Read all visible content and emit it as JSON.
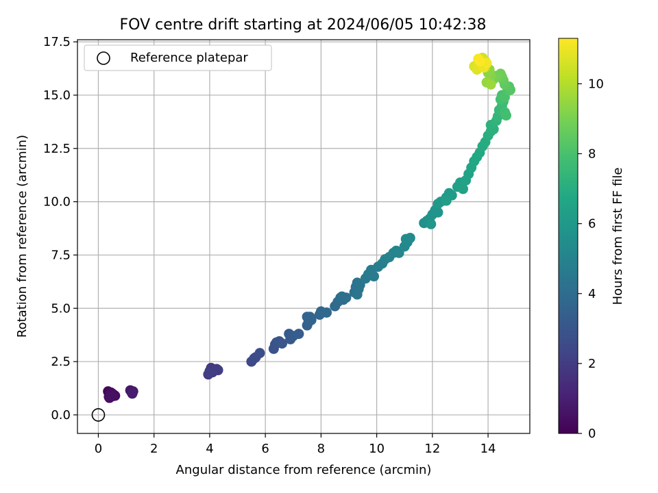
{
  "chart_data": {
    "type": "scatter",
    "title": "FOV centre drift starting at 2024/06/05 10:42:38",
    "xlabel": "Angular distance from reference (arcmin)",
    "ylabel": "Rotation from reference (arcmin)",
    "xlim": [
      -0.75,
      15.5
    ],
    "ylim": [
      -0.87,
      17.6
    ],
    "xticks": [
      "0",
      "2",
      "4",
      "6",
      "8",
      "10",
      "12",
      "14"
    ],
    "yticks": [
      "0.0",
      "2.5",
      "5.0",
      "7.5",
      "10.0",
      "12.5",
      "15.0",
      "17.5"
    ],
    "grid": true,
    "legend": {
      "placement": "top-left",
      "entries": [
        "Reference platepar"
      ]
    },
    "reference_point": {
      "name": "Reference platepar",
      "x": 0.0,
      "y": 0.0
    },
    "colorbar": {
      "label": "Hours from first FF file",
      "colormap": "viridis",
      "range": [
        0,
        11.3
      ],
      "ticks": [
        "0",
        "2",
        "4",
        "6",
        "8",
        "10"
      ]
    },
    "series": [
      {
        "points": [
          [
            0.35,
            1.1,
            0.1
          ],
          [
            0.45,
            0.95,
            0.15
          ],
          [
            0.5,
            1.0,
            0.2
          ],
          [
            0.55,
            0.95,
            0.25
          ],
          [
            0.4,
            0.8,
            0.3
          ],
          [
            0.6,
            0.9,
            0.35
          ],
          [
            0.45,
            1.05,
            0.4
          ],
          [
            0.38,
            0.85,
            0.45
          ],
          [
            0.52,
            0.88,
            0.5
          ],
          [
            1.15,
            1.15,
            0.7
          ],
          [
            1.2,
            1.05,
            0.75
          ],
          [
            1.25,
            1.1,
            0.8
          ],
          [
            1.22,
            1.0,
            0.85
          ],
          [
            3.95,
            1.9,
            1.8
          ],
          [
            4.0,
            2.05,
            1.85
          ],
          [
            4.05,
            2.2,
            1.9
          ],
          [
            4.1,
            2.0,
            1.95
          ],
          [
            4.25,
            2.15,
            2.0
          ],
          [
            4.3,
            2.1,
            2.05
          ],
          [
            3.98,
            1.95,
            2.1
          ],
          [
            5.5,
            2.5,
            2.5
          ],
          [
            5.6,
            2.65,
            2.55
          ],
          [
            5.65,
            2.7,
            2.6
          ],
          [
            5.8,
            2.9,
            2.65
          ],
          [
            6.3,
            3.1,
            2.85
          ],
          [
            6.35,
            3.3,
            2.9
          ],
          [
            6.4,
            3.4,
            2.95
          ],
          [
            6.5,
            3.45,
            3.0
          ],
          [
            6.6,
            3.35,
            3.05
          ],
          [
            6.9,
            3.55,
            3.15
          ],
          [
            6.85,
            3.8,
            3.2
          ],
          [
            7.0,
            3.7,
            3.25
          ],
          [
            7.2,
            3.8,
            3.3
          ],
          [
            7.5,
            4.2,
            3.45
          ],
          [
            7.55,
            4.35,
            3.5
          ],
          [
            7.6,
            4.6,
            3.55
          ],
          [
            7.65,
            4.45,
            3.6
          ],
          [
            7.5,
            4.6,
            3.62
          ],
          [
            7.95,
            4.7,
            3.7
          ],
          [
            8.0,
            4.85,
            3.75
          ],
          [
            8.2,
            4.8,
            3.8
          ],
          [
            8.5,
            5.1,
            3.9
          ],
          [
            8.6,
            5.3,
            3.95
          ],
          [
            8.7,
            5.5,
            4.0
          ],
          [
            8.8,
            5.4,
            4.05
          ],
          [
            8.9,
            5.5,
            4.1
          ],
          [
            8.75,
            5.55,
            4.12
          ],
          [
            9.2,
            5.75,
            4.2
          ],
          [
            9.25,
            6.0,
            4.25
          ],
          [
            9.3,
            6.2,
            4.3
          ],
          [
            9.35,
            5.9,
            4.35
          ],
          [
            9.4,
            6.1,
            4.4
          ],
          [
            9.3,
            5.65,
            4.45
          ],
          [
            9.6,
            6.4,
            4.55
          ],
          [
            9.7,
            6.6,
            4.6
          ],
          [
            9.8,
            6.8,
            4.65
          ],
          [
            9.9,
            6.5,
            4.7
          ],
          [
            10.05,
            6.95,
            4.8
          ],
          [
            10.2,
            7.1,
            4.85
          ],
          [
            10.3,
            7.3,
            4.9
          ],
          [
            10.45,
            7.4,
            4.95
          ],
          [
            10.6,
            7.6,
            5.05
          ],
          [
            10.7,
            7.7,
            5.1
          ],
          [
            10.8,
            7.6,
            5.15
          ],
          [
            11.0,
            7.9,
            5.25
          ],
          [
            11.1,
            8.1,
            5.3
          ],
          [
            11.2,
            8.3,
            5.35
          ],
          [
            11.05,
            8.25,
            5.4
          ],
          [
            11.7,
            9.0,
            5.6
          ],
          [
            11.8,
            9.1,
            5.65
          ],
          [
            11.9,
            9.2,
            5.7
          ],
          [
            12.0,
            9.4,
            5.75
          ],
          [
            12.1,
            9.6,
            5.8
          ],
          [
            12.2,
            9.5,
            5.85
          ],
          [
            11.95,
            8.95,
            5.9
          ],
          [
            12.2,
            9.9,
            6.0
          ],
          [
            12.3,
            10.0,
            6.05
          ],
          [
            12.5,
            10.2,
            6.1
          ],
          [
            12.6,
            10.4,
            6.15
          ],
          [
            12.7,
            10.3,
            6.2
          ],
          [
            12.5,
            10.05,
            6.25
          ],
          [
            12.9,
            10.7,
            6.35
          ],
          [
            13.0,
            10.9,
            6.4
          ],
          [
            13.1,
            10.6,
            6.45
          ],
          [
            13.2,
            11.0,
            6.5
          ],
          [
            13.3,
            11.3,
            6.55
          ],
          [
            13.4,
            11.6,
            6.65
          ],
          [
            13.5,
            11.9,
            6.7
          ],
          [
            13.6,
            12.1,
            6.75
          ],
          [
            13.7,
            12.3,
            6.8
          ],
          [
            13.8,
            12.6,
            6.9
          ],
          [
            13.9,
            12.8,
            6.95
          ],
          [
            14.0,
            13.1,
            7.05
          ],
          [
            14.1,
            13.3,
            7.1
          ],
          [
            14.2,
            13.4,
            7.15
          ],
          [
            14.1,
            13.6,
            7.2
          ],
          [
            14.3,
            13.8,
            7.3
          ],
          [
            14.35,
            14.0,
            7.4
          ],
          [
            14.4,
            14.3,
            7.5
          ],
          [
            14.5,
            14.5,
            7.6
          ],
          [
            14.55,
            14.7,
            7.7
          ],
          [
            14.6,
            14.2,
            7.8
          ],
          [
            14.65,
            14.05,
            7.85
          ],
          [
            14.45,
            14.8,
            7.9
          ],
          [
            14.5,
            15.0,
            8.0
          ],
          [
            14.6,
            14.9,
            8.05
          ],
          [
            14.7,
            15.2,
            8.1
          ],
          [
            14.75,
            15.4,
            8.2
          ],
          [
            14.8,
            15.25,
            8.3
          ],
          [
            14.6,
            15.5,
            8.5
          ],
          [
            14.55,
            15.7,
            8.6
          ],
          [
            14.5,
            15.85,
            8.7
          ],
          [
            14.45,
            16.0,
            8.8
          ],
          [
            14.3,
            15.9,
            8.9
          ],
          [
            14.2,
            15.75,
            9.0
          ],
          [
            14.1,
            15.9,
            9.2
          ],
          [
            14.0,
            16.05,
            9.3
          ],
          [
            14.05,
            16.2,
            9.4
          ],
          [
            13.95,
            15.6,
            9.5
          ],
          [
            14.1,
            15.5,
            9.6
          ],
          [
            13.9,
            16.3,
            9.8
          ],
          [
            13.85,
            16.5,
            9.9
          ],
          [
            13.75,
            16.6,
            10.0
          ],
          [
            13.65,
            16.55,
            10.1
          ],
          [
            13.6,
            16.4,
            10.2
          ],
          [
            13.7,
            16.7,
            10.4
          ],
          [
            13.8,
            16.75,
            10.5
          ],
          [
            13.9,
            16.6,
            10.6
          ],
          [
            13.5,
            16.35,
            10.7
          ],
          [
            13.6,
            16.2,
            10.8
          ],
          [
            13.75,
            16.45,
            10.9
          ],
          [
            13.85,
            16.3,
            11.0
          ],
          [
            13.95,
            16.5,
            11.1
          ],
          [
            13.65,
            16.7,
            11.2
          ],
          [
            13.7,
            16.6,
            11.3
          ]
        ]
      }
    ]
  }
}
